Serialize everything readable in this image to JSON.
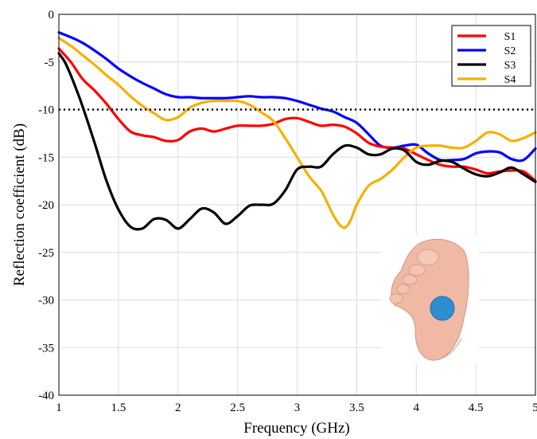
{
  "chart_data": {
    "type": "line",
    "xlabel": "Frequency (GHz)",
    "ylabel": "Reflection coefficient (dB)",
    "xlim": [
      1,
      5
    ],
    "ylim": [
      -40,
      0
    ],
    "xticks": [
      "1",
      "1.5",
      "2",
      "2.5",
      "3",
      "3.5",
      "4",
      "4.5",
      "5"
    ],
    "yticks": [
      "0",
      "-5",
      "-10",
      "-15",
      "-20",
      "-25",
      "-30",
      "-35",
      "-40"
    ],
    "grid": true,
    "legend_position": "top-right",
    "reference_line": {
      "y": -10,
      "style": "dotted",
      "color": "#000000"
    },
    "series": [
      {
        "name": "S1",
        "color": "#ff0000",
        "x": [
          1.0,
          1.1,
          1.2,
          1.3,
          1.4,
          1.5,
          1.6,
          1.7,
          1.8,
          1.9,
          2.0,
          2.1,
          2.2,
          2.3,
          2.4,
          2.5,
          2.6,
          2.7,
          2.8,
          2.9,
          3.0,
          3.1,
          3.2,
          3.3,
          3.4,
          3.5,
          3.6,
          3.7,
          3.8,
          3.9,
          4.0,
          4.1,
          4.2,
          4.3,
          4.4,
          4.5,
          4.6,
          4.7,
          4.8,
          4.9,
          5.0
        ],
        "y": [
          -3.6,
          -5.0,
          -6.8,
          -8.0,
          -9.4,
          -11.0,
          -12.3,
          -12.7,
          -12.9,
          -13.3,
          -13.2,
          -12.3,
          -12.0,
          -12.3,
          -12.0,
          -11.7,
          -11.7,
          -11.7,
          -11.5,
          -11.0,
          -10.9,
          -11.3,
          -11.7,
          -11.6,
          -11.8,
          -12.5,
          -13.5,
          -13.9,
          -14.0,
          -14.1,
          -14.7,
          -15.3,
          -15.8,
          -16.0,
          -16.0,
          -16.3,
          -16.7,
          -16.5,
          -16.4,
          -16.5,
          -17.5
        ]
      },
      {
        "name": "S2",
        "color": "#0000ff",
        "x": [
          1.0,
          1.1,
          1.2,
          1.3,
          1.4,
          1.5,
          1.6,
          1.7,
          1.8,
          1.9,
          2.0,
          2.1,
          2.2,
          2.3,
          2.4,
          2.5,
          2.6,
          2.7,
          2.8,
          2.9,
          3.0,
          3.1,
          3.2,
          3.3,
          3.4,
          3.5,
          3.6,
          3.7,
          3.8,
          3.9,
          4.0,
          4.1,
          4.2,
          4.3,
          4.4,
          4.5,
          4.6,
          4.7,
          4.8,
          4.9,
          5.0
        ],
        "y": [
          -1.9,
          -2.4,
          -3.0,
          -3.8,
          -4.7,
          -5.7,
          -6.5,
          -7.2,
          -7.8,
          -8.4,
          -8.7,
          -8.7,
          -8.8,
          -8.8,
          -8.8,
          -8.7,
          -8.6,
          -8.7,
          -8.7,
          -8.8,
          -9.1,
          -9.5,
          -9.9,
          -10.2,
          -10.8,
          -11.4,
          -12.6,
          -13.8,
          -14.0,
          -13.8,
          -13.7,
          -14.6,
          -15.3,
          -15.3,
          -15.2,
          -14.6,
          -14.4,
          -14.5,
          -15.2,
          -15.3,
          -14.1
        ]
      },
      {
        "name": "S3",
        "color": "#000000",
        "x": [
          1.0,
          1.05,
          1.1,
          1.15,
          1.2,
          1.3,
          1.4,
          1.5,
          1.6,
          1.7,
          1.8,
          1.9,
          2.0,
          2.1,
          2.2,
          2.3,
          2.4,
          2.5,
          2.6,
          2.7,
          2.8,
          2.9,
          3.0,
          3.1,
          3.2,
          3.3,
          3.4,
          3.5,
          3.6,
          3.7,
          3.8,
          3.9,
          4.0,
          4.1,
          4.2,
          4.3,
          4.4,
          4.5,
          4.6,
          4.7,
          4.8,
          4.9,
          5.0
        ],
        "y": [
          -4.1,
          -5.0,
          -6.4,
          -8.0,
          -9.7,
          -13.5,
          -17.5,
          -20.5,
          -22.3,
          -22.5,
          -21.5,
          -21.6,
          -22.5,
          -21.5,
          -20.4,
          -20.8,
          -22.0,
          -21.2,
          -20.1,
          -20.0,
          -19.9,
          -18.5,
          -16.3,
          -16.0,
          -16.0,
          -14.7,
          -13.8,
          -14.0,
          -14.7,
          -14.7,
          -14.1,
          -14.3,
          -15.5,
          -15.8,
          -15.4,
          -15.5,
          -16.2,
          -16.8,
          -17.0,
          -16.6,
          -16.1,
          -16.8,
          -17.6
        ]
      },
      {
        "name": "S4",
        "color": "#f5b000",
        "x": [
          1.0,
          1.1,
          1.2,
          1.3,
          1.4,
          1.5,
          1.6,
          1.7,
          1.8,
          1.9,
          2.0,
          2.1,
          2.2,
          2.3,
          2.4,
          2.5,
          2.6,
          2.7,
          2.8,
          2.9,
          3.0,
          3.1,
          3.2,
          3.25,
          3.3,
          3.35,
          3.4,
          3.45,
          3.5,
          3.6,
          3.7,
          3.8,
          3.9,
          4.0,
          4.1,
          4.2,
          4.3,
          4.4,
          4.5,
          4.6,
          4.7,
          4.8,
          4.9,
          5.0
        ],
        "y": [
          -2.5,
          -3.3,
          -4.3,
          -5.3,
          -6.4,
          -7.4,
          -8.6,
          -9.6,
          -10.4,
          -11.1,
          -10.8,
          -9.8,
          -9.3,
          -9.1,
          -9.1,
          -9.1,
          -9.5,
          -10.3,
          -11.2,
          -13.0,
          -15.0,
          -17.0,
          -18.5,
          -19.7,
          -21.0,
          -22.0,
          -22.4,
          -21.6,
          -20.0,
          -18.0,
          -17.3,
          -16.3,
          -15.0,
          -14.0,
          -13.8,
          -13.8,
          -14.0,
          -14.0,
          -13.3,
          -12.4,
          -12.6,
          -13.3,
          -13.0,
          -12.4
        ]
      }
    ]
  },
  "inset": {
    "icon": "foot-sole-icon"
  }
}
